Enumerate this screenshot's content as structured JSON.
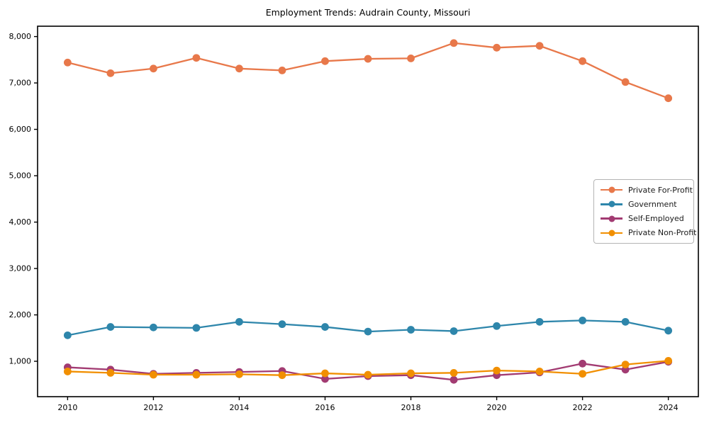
{
  "title": "Employment Trends: Audrain County, Missouri",
  "chart_data": {
    "type": "line",
    "title": "Employment Trends: Audrain County, Missouri",
    "xlabel": "",
    "ylabel": "",
    "grid": false,
    "legend_position": "center right",
    "x": [
      2010,
      2011,
      2012,
      2013,
      2014,
      2015,
      2016,
      2017,
      2018,
      2019,
      2020,
      2021,
      2022,
      2023,
      2024
    ],
    "xticks": [
      2010,
      2012,
      2014,
      2016,
      2018,
      2020,
      2022,
      2024
    ],
    "xtick_labels": [
      "2010",
      "2012",
      "2014",
      "2016",
      "2018",
      "2020",
      "2022",
      "2024"
    ],
    "yticks": [
      1000,
      2000,
      3000,
      4000,
      5000,
      6000,
      7000,
      8000
    ],
    "ytick_labels": [
      "1,000",
      "2,000",
      "3,000",
      "4,000",
      "5,000",
      "6,000",
      "7,000",
      "8,000"
    ],
    "xlim": [
      2009.3,
      2024.7
    ],
    "ylim": [
      237,
      8223
    ],
    "axis_color": "#000000",
    "series": [
      {
        "name": "Private For-Profit",
        "color": "#E8784A",
        "values": [
          7440,
          7210,
          7310,
          7540,
          7310,
          7270,
          7470,
          7520,
          7530,
          7860,
          7760,
          7800,
          7470,
          7020,
          6670
        ]
      },
      {
        "name": "Government",
        "color": "#2E86AB",
        "values": [
          1560,
          1740,
          1730,
          1720,
          1850,
          1800,
          1740,
          1640,
          1680,
          1650,
          1760,
          1850,
          1880,
          1850,
          1660
        ]
      },
      {
        "name": "Self-Employed",
        "color": "#A23B72",
        "values": [
          870,
          820,
          730,
          750,
          770,
          790,
          620,
          680,
          700,
          600,
          700,
          760,
          950,
          820,
          990
        ]
      },
      {
        "name": "Private Non-Profit",
        "color": "#F18F01",
        "values": [
          780,
          750,
          710,
          710,
          720,
          700,
          740,
          710,
          740,
          750,
          800,
          780,
          730,
          930,
          1010
        ]
      }
    ]
  }
}
